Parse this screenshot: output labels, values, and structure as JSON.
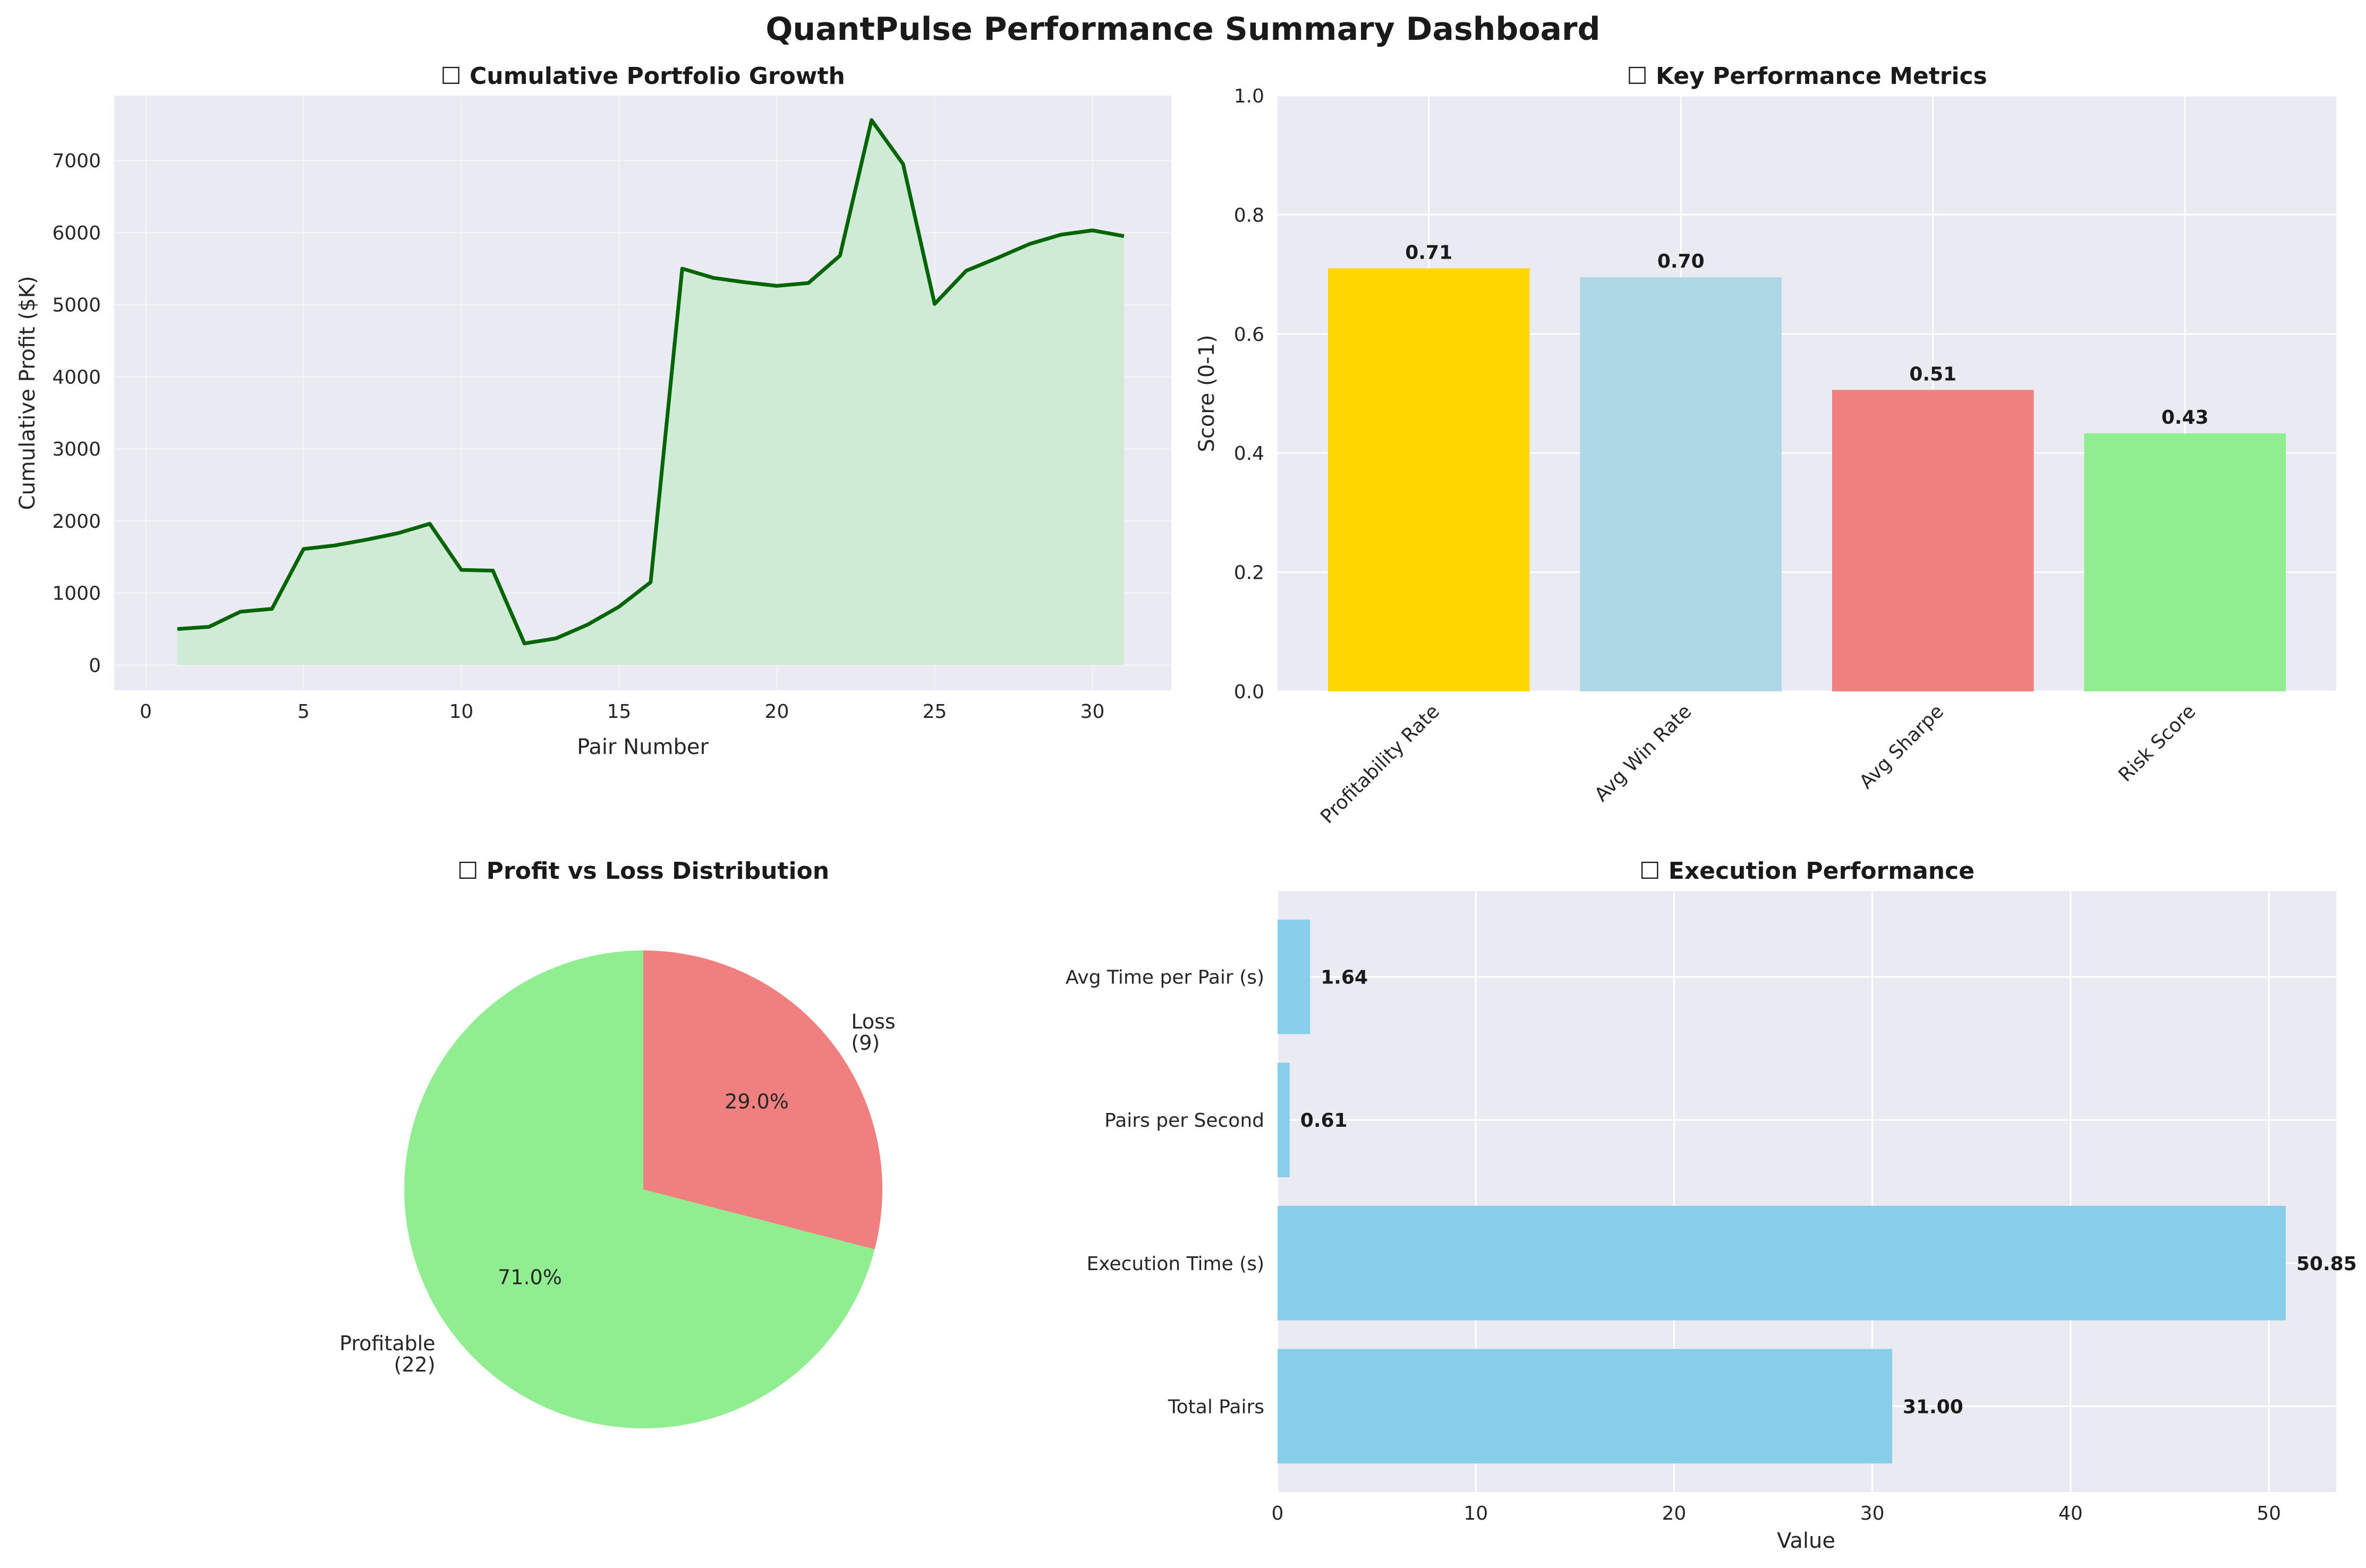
{
  "suptitle": "QuantPulse Performance Summary Dashboard",
  "style": {
    "panel_bg": "#EAEAF2",
    "grid": "#FFFFFF",
    "text": "#262626",
    "title": "#1A1A1A"
  },
  "chart_data": [
    {
      "type": "area",
      "title": "☐ Cumulative Portfolio Growth",
      "xlabel": "Pair Number",
      "ylabel": "Cumulative Profit ($K)",
      "xlim": [
        -1,
        32.5
      ],
      "ylim": [
        -350,
        7900
      ],
      "xticks": [
        0,
        5,
        10,
        15,
        20,
        25,
        30
      ],
      "yticks": [
        0,
        1000,
        2000,
        3000,
        4000,
        5000,
        6000,
        7000
      ],
      "line_color": "#006400",
      "fill_color": "#CFEBD6",
      "grid": true,
      "x": [
        1,
        2,
        3,
        4,
        5,
        6,
        7,
        8,
        9,
        10,
        11,
        12,
        13,
        14,
        15,
        16,
        17,
        18,
        19,
        20,
        21,
        22,
        23,
        24,
        25,
        26,
        27,
        28,
        29,
        30,
        31
      ],
      "y": [
        500,
        530,
        740,
        780,
        1610,
        1660,
        1740,
        1830,
        1960,
        1320,
        1310,
        300,
        370,
        560,
        810,
        1150,
        5500,
        5370,
        5310,
        5260,
        5300,
        5680,
        7560,
        6950,
        5010,
        5470,
        5650,
        5840,
        5970,
        6030,
        5950
      ]
    },
    {
      "type": "bar",
      "title": "☐ Key Performance Metrics",
      "xlabel": "",
      "ylabel": "Score (0-1)",
      "ylim": [
        0,
        1.0
      ],
      "yticks": [
        "0.0",
        "0.2",
        "0.4",
        "0.6",
        "0.8",
        "1.0"
      ],
      "grid": true,
      "categories": [
        "Profitability Rate",
        "Avg Win Rate",
        "Avg Sharpe",
        "Risk Score"
      ],
      "values": [
        0.71,
        0.695,
        0.506,
        0.433
      ],
      "value_labels": [
        "0.71",
        "0.70",
        "0.51",
        "0.43"
      ],
      "colors": [
        "#FFD700",
        "#ADD8E6",
        "#F08080",
        "#90EE90"
      ]
    },
    {
      "type": "pie",
      "title": "☐ Profit vs Loss Distribution",
      "start_angle_deg": 90,
      "slices": [
        {
          "label": "Profitable",
          "count": "(22)",
          "value": 22,
          "pct": "71.0%",
          "color": "#90EE90"
        },
        {
          "label": "Loss",
          "count": "(9)",
          "value": 9,
          "pct": "29.0%",
          "color": "#F08080"
        }
      ]
    },
    {
      "type": "bar",
      "orientation": "horizontal",
      "title": "☐ Execution Performance",
      "xlabel": "Value",
      "ylabel": "",
      "xlim": [
        0,
        53.4
      ],
      "xticks": [
        0,
        10,
        20,
        30,
        40,
        50
      ],
      "grid": true,
      "color": "#87CEEB",
      "categories": [
        "Total Pairs",
        "Execution Time (s)",
        "Pairs per Second",
        "Avg Time per Pair (s)"
      ],
      "values": [
        31.0,
        50.85,
        0.61,
        1.64
      ],
      "value_labels": [
        "31.00",
        "50.85",
        "0.61",
        "1.64"
      ]
    }
  ]
}
